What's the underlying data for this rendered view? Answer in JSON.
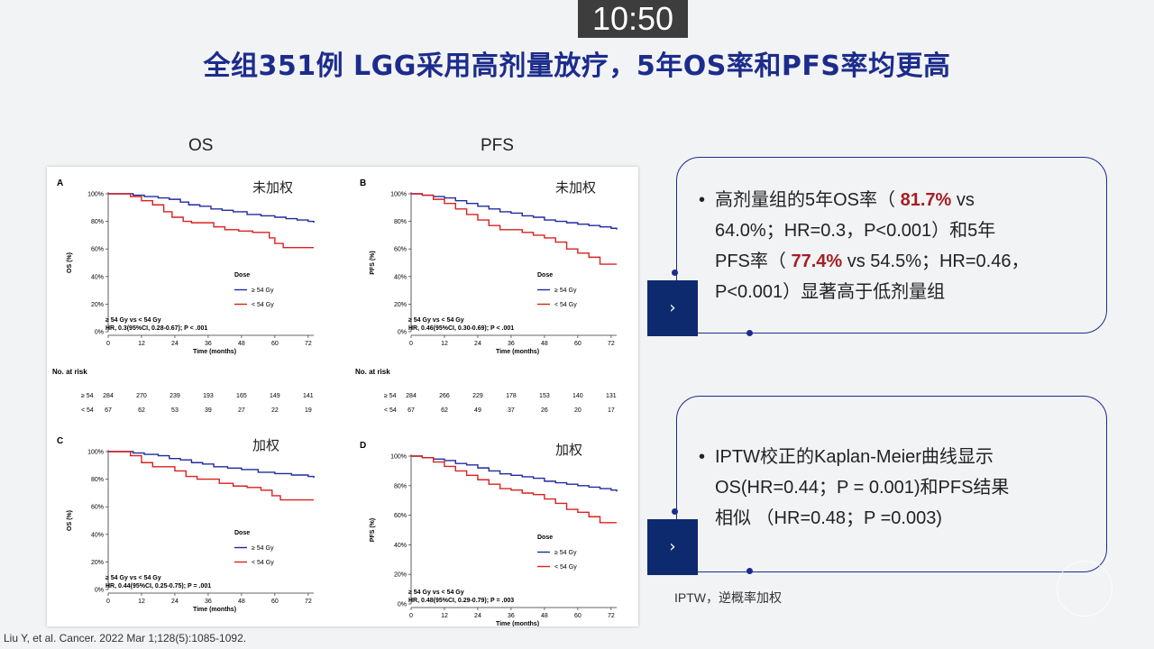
{
  "timer": "10:50",
  "title": "全组351例 LGG采用高剂量放疗，5年OS率和PFS率均更高",
  "col_labels": {
    "os": "OS",
    "pfs": "PFS"
  },
  "citation": "Liu Y, et al. Cancer. 2022 Mar 1;128(5):1085-1092.",
  "footnote": "IPTW，逆概率加权",
  "callout1": {
    "line1_pre": "高剂量组的5年OS率（ ",
    "line1_hl": "81.7%",
    "line1_post": " vs",
    "line2": "64.0%；HR=0.3，P<0.001）和5年",
    "line3_pre": "PFS率（ ",
    "line3_hl": "77.4%",
    "line3_post": " vs 54.5%；HR=0.46，",
    "line4": "P<0.001）显著高于低剂量组"
  },
  "callout2": {
    "line1": "IPTW校正的Kaplan-Meier曲线显示",
    "line2": "OS(HR=0.44；P = 0.001)和PFS结果",
    "line3": "相似  （HR=0.48；P =0.003)"
  },
  "arrow_glyph": "›",
  "chart_data": [
    {
      "type": "line",
      "panel": "A",
      "label": "未加权",
      "ylabel": "OS (%)",
      "xlabel": "Time (months)",
      "xlim": [
        0,
        74
      ],
      "ylim": [
        0,
        100
      ],
      "xticks": [
        0,
        12,
        24,
        36,
        48,
        60,
        72
      ],
      "yticks": [
        "0%",
        "20%",
        "40%",
        "60%",
        "80%",
        "100%"
      ],
      "legend_title": "Dose",
      "stats_line1": "≥ 54 Gy vs < 54 Gy",
      "stats_line2": "HR, 0.3(95%CI, 0.28-0.67); P < .001",
      "series": [
        {
          "name": "≥ 54 Gy",
          "color": "#1f2b9c",
          "x": [
            0,
            5,
            9,
            13,
            18,
            22,
            26,
            29,
            33,
            37,
            41,
            45,
            50,
            55,
            60,
            64,
            68,
            72,
            74
          ],
          "y": [
            100,
            100,
            99,
            98,
            97,
            96,
            94,
            92,
            91,
            89,
            88,
            87,
            85,
            84,
            83,
            82,
            81,
            80,
            79
          ]
        },
        {
          "name": "< 54 Gy",
          "color": "#d9211f",
          "x": [
            0,
            5,
            8,
            12,
            16,
            20,
            23,
            27,
            30,
            34,
            38,
            42,
            47,
            52,
            58,
            60,
            63,
            67,
            74
          ],
          "y": [
            100,
            100,
            98,
            95,
            92,
            87,
            83,
            80,
            79,
            79,
            76,
            74,
            73,
            72,
            68,
            64,
            61,
            61,
            61
          ]
        }
      ]
    },
    {
      "type": "line",
      "panel": "B",
      "label": "未加权",
      "ylabel": "PFS (%)",
      "xlabel": "Time (months)",
      "xlim": [
        0,
        74
      ],
      "ylim": [
        0,
        100
      ],
      "xticks": [
        0,
        12,
        24,
        36,
        48,
        60,
        72
      ],
      "yticks": [
        "0%",
        "20%",
        "40%",
        "60%",
        "80%",
        "100%"
      ],
      "legend_title": "Dose",
      "stats_line1": "≥ 54 Gy vs < 54 Gy",
      "stats_line2": "HR, 0.46(95%CI, 0.30-0.69); P < .001",
      "series": [
        {
          "name": "≥ 54 Gy",
          "color": "#1f2b9c",
          "x": [
            0,
            4,
            8,
            12,
            16,
            20,
            24,
            28,
            32,
            36,
            40,
            44,
            48,
            52,
            56,
            60,
            64,
            68,
            72,
            74
          ],
          "y": [
            100,
            99,
            98,
            97,
            95,
            93,
            91,
            89,
            87,
            86,
            84,
            83,
            81,
            80,
            79,
            78,
            77,
            76,
            75,
            74
          ]
        },
        {
          "name": "< 54 Gy",
          "color": "#d9211f",
          "x": [
            0,
            4,
            8,
            12,
            16,
            20,
            24,
            28,
            32,
            36,
            40,
            44,
            48,
            52,
            56,
            60,
            64,
            68,
            74
          ],
          "y": [
            100,
            99,
            96,
            93,
            89,
            85,
            81,
            77,
            74,
            74,
            72,
            70,
            68,
            65,
            60,
            57,
            54,
            49,
            49
          ]
        }
      ]
    },
    {
      "type": "line",
      "panel": "C",
      "label": "加权",
      "ylabel": "OS (%)",
      "xlabel": "Time (months)",
      "xlim": [
        0,
        74
      ],
      "ylim": [
        0,
        100
      ],
      "xticks": [
        0,
        12,
        24,
        36,
        48,
        60,
        72
      ],
      "yticks": [
        "0%",
        "20%",
        "40%",
        "60%",
        "80%",
        "100%"
      ],
      "legend_title": "Dose",
      "stats_line1": "≥ 54 Gy vs < 54 Gy",
      "stats_line2": "HR, 0.44(95%CI, 0.25-0.75); P = .001",
      "series": [
        {
          "name": "≥ 54 Gy",
          "color": "#1f2b9c",
          "x": [
            0,
            5,
            9,
            13,
            18,
            22,
            26,
            30,
            34,
            38,
            43,
            48,
            54,
            60,
            66,
            72,
            74
          ],
          "y": [
            100,
            100,
            99,
            98,
            97,
            95,
            94,
            92,
            91,
            89,
            88,
            87,
            85,
            84,
            83,
            82,
            81
          ]
        },
        {
          "name": "< 54 Gy",
          "color": "#d9211f",
          "x": [
            0,
            5,
            8,
            12,
            16,
            20,
            24,
            28,
            32,
            36,
            40,
            45,
            50,
            55,
            59,
            62,
            66,
            74
          ],
          "y": [
            100,
            100,
            97,
            92,
            89,
            89,
            86,
            82,
            80,
            80,
            77,
            75,
            74,
            72,
            68,
            65,
            65,
            65
          ]
        }
      ]
    },
    {
      "type": "line",
      "panel": "D",
      "label": "加权",
      "ylabel": "PFS (%)",
      "xlabel": "Time (months)",
      "xlim": [
        0,
        74
      ],
      "ylim": [
        0,
        100
      ],
      "xticks": [
        0,
        12,
        24,
        36,
        48,
        60,
        72
      ],
      "yticks": [
        "0%",
        "20%",
        "40%",
        "60%",
        "80%",
        "100%"
      ],
      "legend_title": "Dose",
      "stats_line1": "≥ 54 Gy vs < 54 Gy",
      "stats_line2": "HR, 0.48(95%CI, 0.29-0.79); P = .003",
      "series": [
        {
          "name": "≥ 54 Gy",
          "color": "#1f2b9c",
          "x": [
            0,
            4,
            8,
            12,
            16,
            20,
            24,
            28,
            32,
            36,
            40,
            44,
            48,
            52,
            56,
            60,
            64,
            68,
            72,
            74
          ],
          "y": [
            100,
            99,
            98,
            97,
            95,
            94,
            92,
            90,
            88,
            87,
            86,
            85,
            83,
            82,
            81,
            80,
            79,
            78,
            77,
            76
          ]
        },
        {
          "name": "< 54 Gy",
          "color": "#d9211f",
          "x": [
            0,
            4,
            8,
            12,
            16,
            20,
            24,
            28,
            32,
            36,
            40,
            44,
            48,
            52,
            56,
            60,
            64,
            68,
            74
          ],
          "y": [
            100,
            99,
            96,
            93,
            90,
            87,
            84,
            81,
            78,
            77,
            75,
            74,
            71,
            68,
            64,
            62,
            59,
            55,
            55
          ]
        }
      ]
    }
  ],
  "risk_tables": {
    "title": "No. at risk",
    "os": {
      "rows": [
        {
          "label": "≥ 54",
          "values": [
            "284",
            "270",
            "239",
            "193",
            "165",
            "149",
            "141"
          ]
        },
        {
          "label": "< 54",
          "values": [
            "67",
            "62",
            "53",
            "39",
            "27",
            "22",
            "19"
          ]
        }
      ]
    },
    "pfs": {
      "rows": [
        {
          "label": "≥ 54",
          "values": [
            "284",
            "266",
            "229",
            "178",
            "153",
            "140",
            "131"
          ]
        },
        {
          "label": "< 54",
          "values": [
            "67",
            "62",
            "49",
            "37",
            "26",
            "20",
            "17"
          ]
        }
      ]
    }
  }
}
